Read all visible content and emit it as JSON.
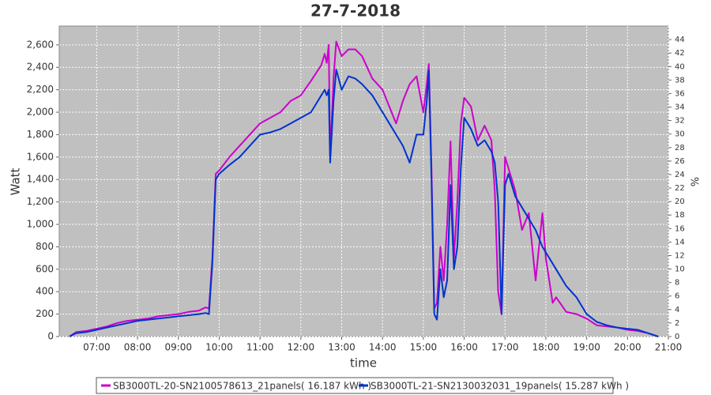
{
  "chart_data": {
    "type": "line",
    "title": "27-7-2018",
    "x_label": "time",
    "y_label": "Watt",
    "y2_label": "%",
    "x": [
      "06:20",
      "06:30",
      "06:45",
      "07:00",
      "07:15",
      "07:30",
      "07:45",
      "08:00",
      "08:15",
      "08:30",
      "08:45",
      "09:00",
      "09:15",
      "09:30",
      "09:40",
      "09:45",
      "09:50",
      "09:55",
      "10:00",
      "10:15",
      "10:30",
      "10:45",
      "11:00",
      "11:15",
      "11:30",
      "11:45",
      "12:00",
      "12:15",
      "12:30",
      "12:35",
      "12:38",
      "12:41",
      "12:43",
      "12:48",
      "12:52",
      "13:00",
      "13:10",
      "13:20",
      "13:30",
      "13:45",
      "14:00",
      "14:10",
      "14:20",
      "14:30",
      "14:40",
      "14:50",
      "15:00",
      "15:05",
      "15:08",
      "15:12",
      "15:16",
      "15:20",
      "15:25",
      "15:30",
      "15:35",
      "15:40",
      "15:45",
      "15:50",
      "15:55",
      "16:00",
      "16:10",
      "16:20",
      "16:30",
      "16:40",
      "16:45",
      "16:50",
      "16:55",
      "17:00",
      "17:05",
      "17:15",
      "17:25",
      "17:35",
      "17:45",
      "17:55",
      "18:00",
      "18:10",
      "18:15",
      "18:30",
      "18:45",
      "19:00",
      "19:15",
      "19:30",
      "19:45",
      "20:00",
      "20:15",
      "20:30",
      "20:45"
    ],
    "series": [
      {
        "name": "SB3000TL-20-SN2100578613_21panels( 16.187 kWh )",
        "color": "#cc00cc",
        "values": [
          0,
          40,
          50,
          70,
          90,
          120,
          140,
          150,
          160,
          180,
          190,
          200,
          220,
          230,
          260,
          250,
          700,
          1450,
          1480,
          1600,
          1700,
          1800,
          1900,
          1950,
          2000,
          2100,
          2150,
          2280,
          2420,
          2520,
          2440,
          2600,
          1600,
          2300,
          2630,
          2500,
          2560,
          2560,
          2500,
          2300,
          2200,
          2050,
          1900,
          2100,
          2250,
          2320,
          2000,
          2250,
          2430,
          1500,
          250,
          300,
          800,
          500,
          1000,
          1740,
          700,
          1200,
          1900,
          2130,
          2050,
          1750,
          1880,
          1750,
          1300,
          400,
          200,
          1600,
          1500,
          1300,
          950,
          1100,
          500,
          1100,
          700,
          300,
          350,
          220,
          200,
          160,
          100,
          90,
          80,
          60,
          50,
          30,
          0
        ]
      },
      {
        "name": "SB3000TL-21-SN2130032031_19panels( 15.287 kWh )",
        "color": "#0033cc",
        "values": [
          0,
          30,
          40,
          60,
          80,
          100,
          120,
          140,
          150,
          160,
          170,
          180,
          190,
          200,
          210,
          200,
          650,
          1400,
          1450,
          1530,
          1600,
          1700,
          1800,
          1820,
          1850,
          1900,
          1950,
          2000,
          2150,
          2200,
          2150,
          2200,
          1550,
          2100,
          2380,
          2200,
          2320,
          2300,
          2250,
          2150,
          2000,
          1900,
          1800,
          1700,
          1550,
          1800,
          1800,
          2100,
          2370,
          1400,
          200,
          150,
          600,
          350,
          500,
          1350,
          600,
          800,
          1500,
          1950,
          1850,
          1700,
          1750,
          1650,
          1550,
          1200,
          200,
          1350,
          1450,
          1250,
          1150,
          1050,
          950,
          800,
          750,
          650,
          600,
          450,
          350,
          200,
          130,
          100,
          80,
          70,
          60,
          30,
          0
        ]
      }
    ],
    "xlim": [
      "06:05",
      "21:00"
    ],
    "xticks": [
      "07:00",
      "08:00",
      "09:00",
      "10:00",
      "11:00",
      "12:00",
      "13:00",
      "14:00",
      "15:00",
      "16:00",
      "17:00",
      "18:00",
      "19:00",
      "20:00",
      "21:00"
    ],
    "ylim": [
      0,
      2768
    ],
    "yticks": [
      0,
      200,
      400,
      600,
      800,
      {
        "value": 1000,
        "label": "1,000"
      },
      {
        "value": 1200,
        "label": "1,200"
      },
      {
        "value": 1400,
        "label": "1,400"
      },
      {
        "value": 1600,
        "label": "1,600"
      },
      {
        "value": 1800,
        "label": "1,800"
      },
      {
        "value": 2000,
        "label": "2,000"
      },
      {
        "value": 2200,
        "label": "2,200"
      },
      {
        "value": 2400,
        "label": "2,400"
      },
      {
        "value": 2600,
        "label": "2,600"
      }
    ],
    "y2lim": [
      0,
      46
    ],
    "y2ticks": [
      0,
      2,
      4,
      6,
      8,
      10,
      12,
      14,
      16,
      18,
      20,
      22,
      24,
      26,
      28,
      30,
      32,
      34,
      36,
      38,
      40,
      42,
      44
    ],
    "grid": true
  }
}
